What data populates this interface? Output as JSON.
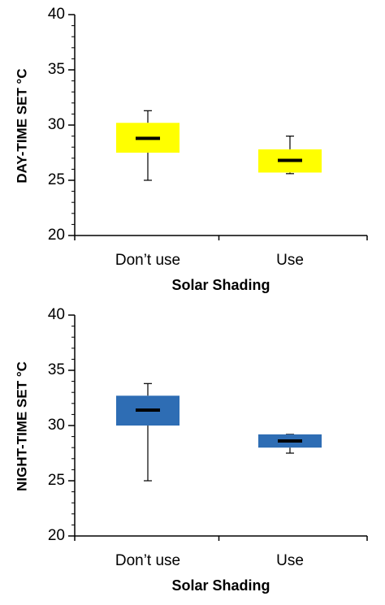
{
  "chart_data": [
    {
      "type": "box",
      "xlabel": "Solar Shading",
      "ylabel": "DAY-TIME SET °C",
      "ylim": [
        20,
        40
      ],
      "yticks": [
        20,
        25,
        30,
        35,
        40
      ],
      "ymajor_step": 5,
      "yminor_step": 1,
      "categories": [
        "Don’t use",
        "Use"
      ],
      "fill_color": "#ffff00",
      "boxes": [
        {
          "category": "Don’t use",
          "min": 25.0,
          "q1": 27.5,
          "median": 28.8,
          "q3": 30.2,
          "max": 31.3
        },
        {
          "category": "Use",
          "min": 25.6,
          "q1": 25.7,
          "median": 26.8,
          "q3": 27.8,
          "max": 29.0
        }
      ],
      "grid": false
    },
    {
      "type": "box",
      "xlabel": "Solar Shading",
      "ylabel": "NIGHT-TIME SET °C",
      "ylim": [
        20,
        40
      ],
      "yticks": [
        20,
        25,
        30,
        35,
        40
      ],
      "ymajor_step": 5,
      "yminor_step": 1,
      "categories": [
        "Don’t use",
        "Use"
      ],
      "fill_color": "#2e6db4",
      "boxes": [
        {
          "category": "Don’t use",
          "min": 25.0,
          "q1": 30.0,
          "median": 31.4,
          "q3": 32.7,
          "max": 33.8
        },
        {
          "category": "Use",
          "min": 27.5,
          "q1": 28.0,
          "median": 28.6,
          "q3": 29.2,
          "max": 29.2
        }
      ],
      "grid": false
    }
  ]
}
